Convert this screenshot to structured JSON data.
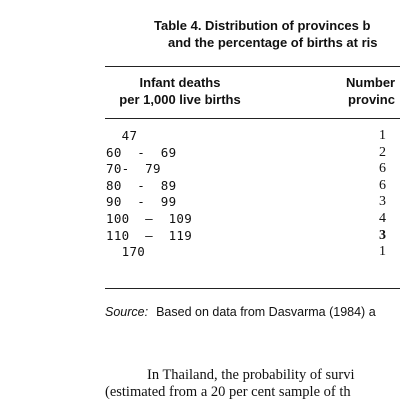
{
  "table": {
    "title_line1": "Table 4.  Distribution of provinces b",
    "title_line2": "and the percentage of births at ris",
    "col1_header_line1": "Infant deaths",
    "col1_header_line2": "per 1,000 live births",
    "col2_header_line1": "Number",
    "col2_header_line2": "provinc",
    "rows": [
      {
        "rate": "  47",
        "count": "1"
      },
      {
        "rate": "60  -  69",
        "count": "2"
      },
      {
        "rate": "70-  79",
        "count": "6"
      },
      {
        "rate": "80  -  89",
        "count": "6"
      },
      {
        "rate": "90  -  99",
        "count": "3"
      },
      {
        "rate": "100  –  109",
        "count": "4"
      },
      {
        "rate": "110  –  119",
        "count": "3"
      },
      {
        "rate": "  170",
        "count": "1"
      }
    ]
  },
  "source": {
    "label": "Source:",
    "text": "Based on data from Dasvarma (1984) a"
  },
  "paragraph": {
    "line1": "In Thailand, the probability of survi",
    "line2": "(estimated from a 20 per cent sample of th"
  }
}
